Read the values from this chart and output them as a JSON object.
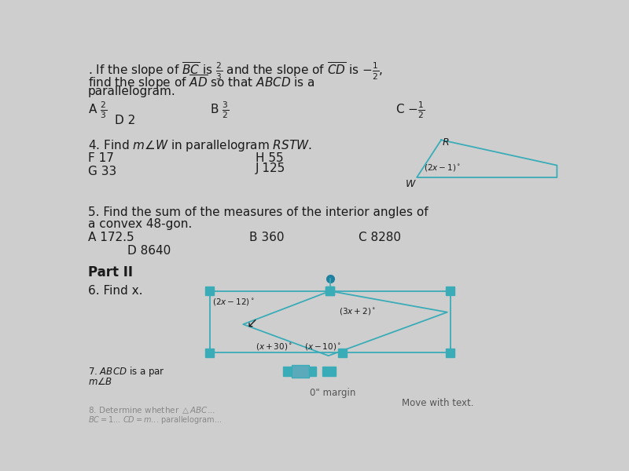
{
  "bg_color": "#cecece",
  "text_color": "#1a1a1a",
  "dark_text": "#2a2a2a",
  "teal_color": "#3aacb8",
  "para_color": "#3aacb8",
  "fs_main": 11.0,
  "fs_small": 8.5,
  "fs_tiny": 7.5,
  "q3_line1": ". If the slope of $\\overline{BC}$ is $\\frac{2}{3}$ and the slope of $\\overline{CD}$ is $-\\frac{1}{2}$,",
  "q3_line2": "find the slope of $\\overline{AD}$ so that $ABCD$ is a",
  "q3_line3": "parallelogram.",
  "q4_line1": "4. Find $m\\underline{\\angle W}$ in parallelogram $\\underline{RSTW}$.",
  "q5_line1": "5. Find the sum of the measures of the interior angles of",
  "q5_line2": "a convex 48-gon.",
  "part2": "Part II",
  "q6": "6. Find x.",
  "q7": "7. $ABCD$ is a par",
  "q7b": "$m\\angle B$",
  "bottom1": "0\" margin",
  "bottom2": "Move with text.",
  "q8a": "8. Determine whether $\\triangle ABC$...",
  "q8b": "$\\overline{BC} = 1$... $CD = m$... parallelogram..."
}
